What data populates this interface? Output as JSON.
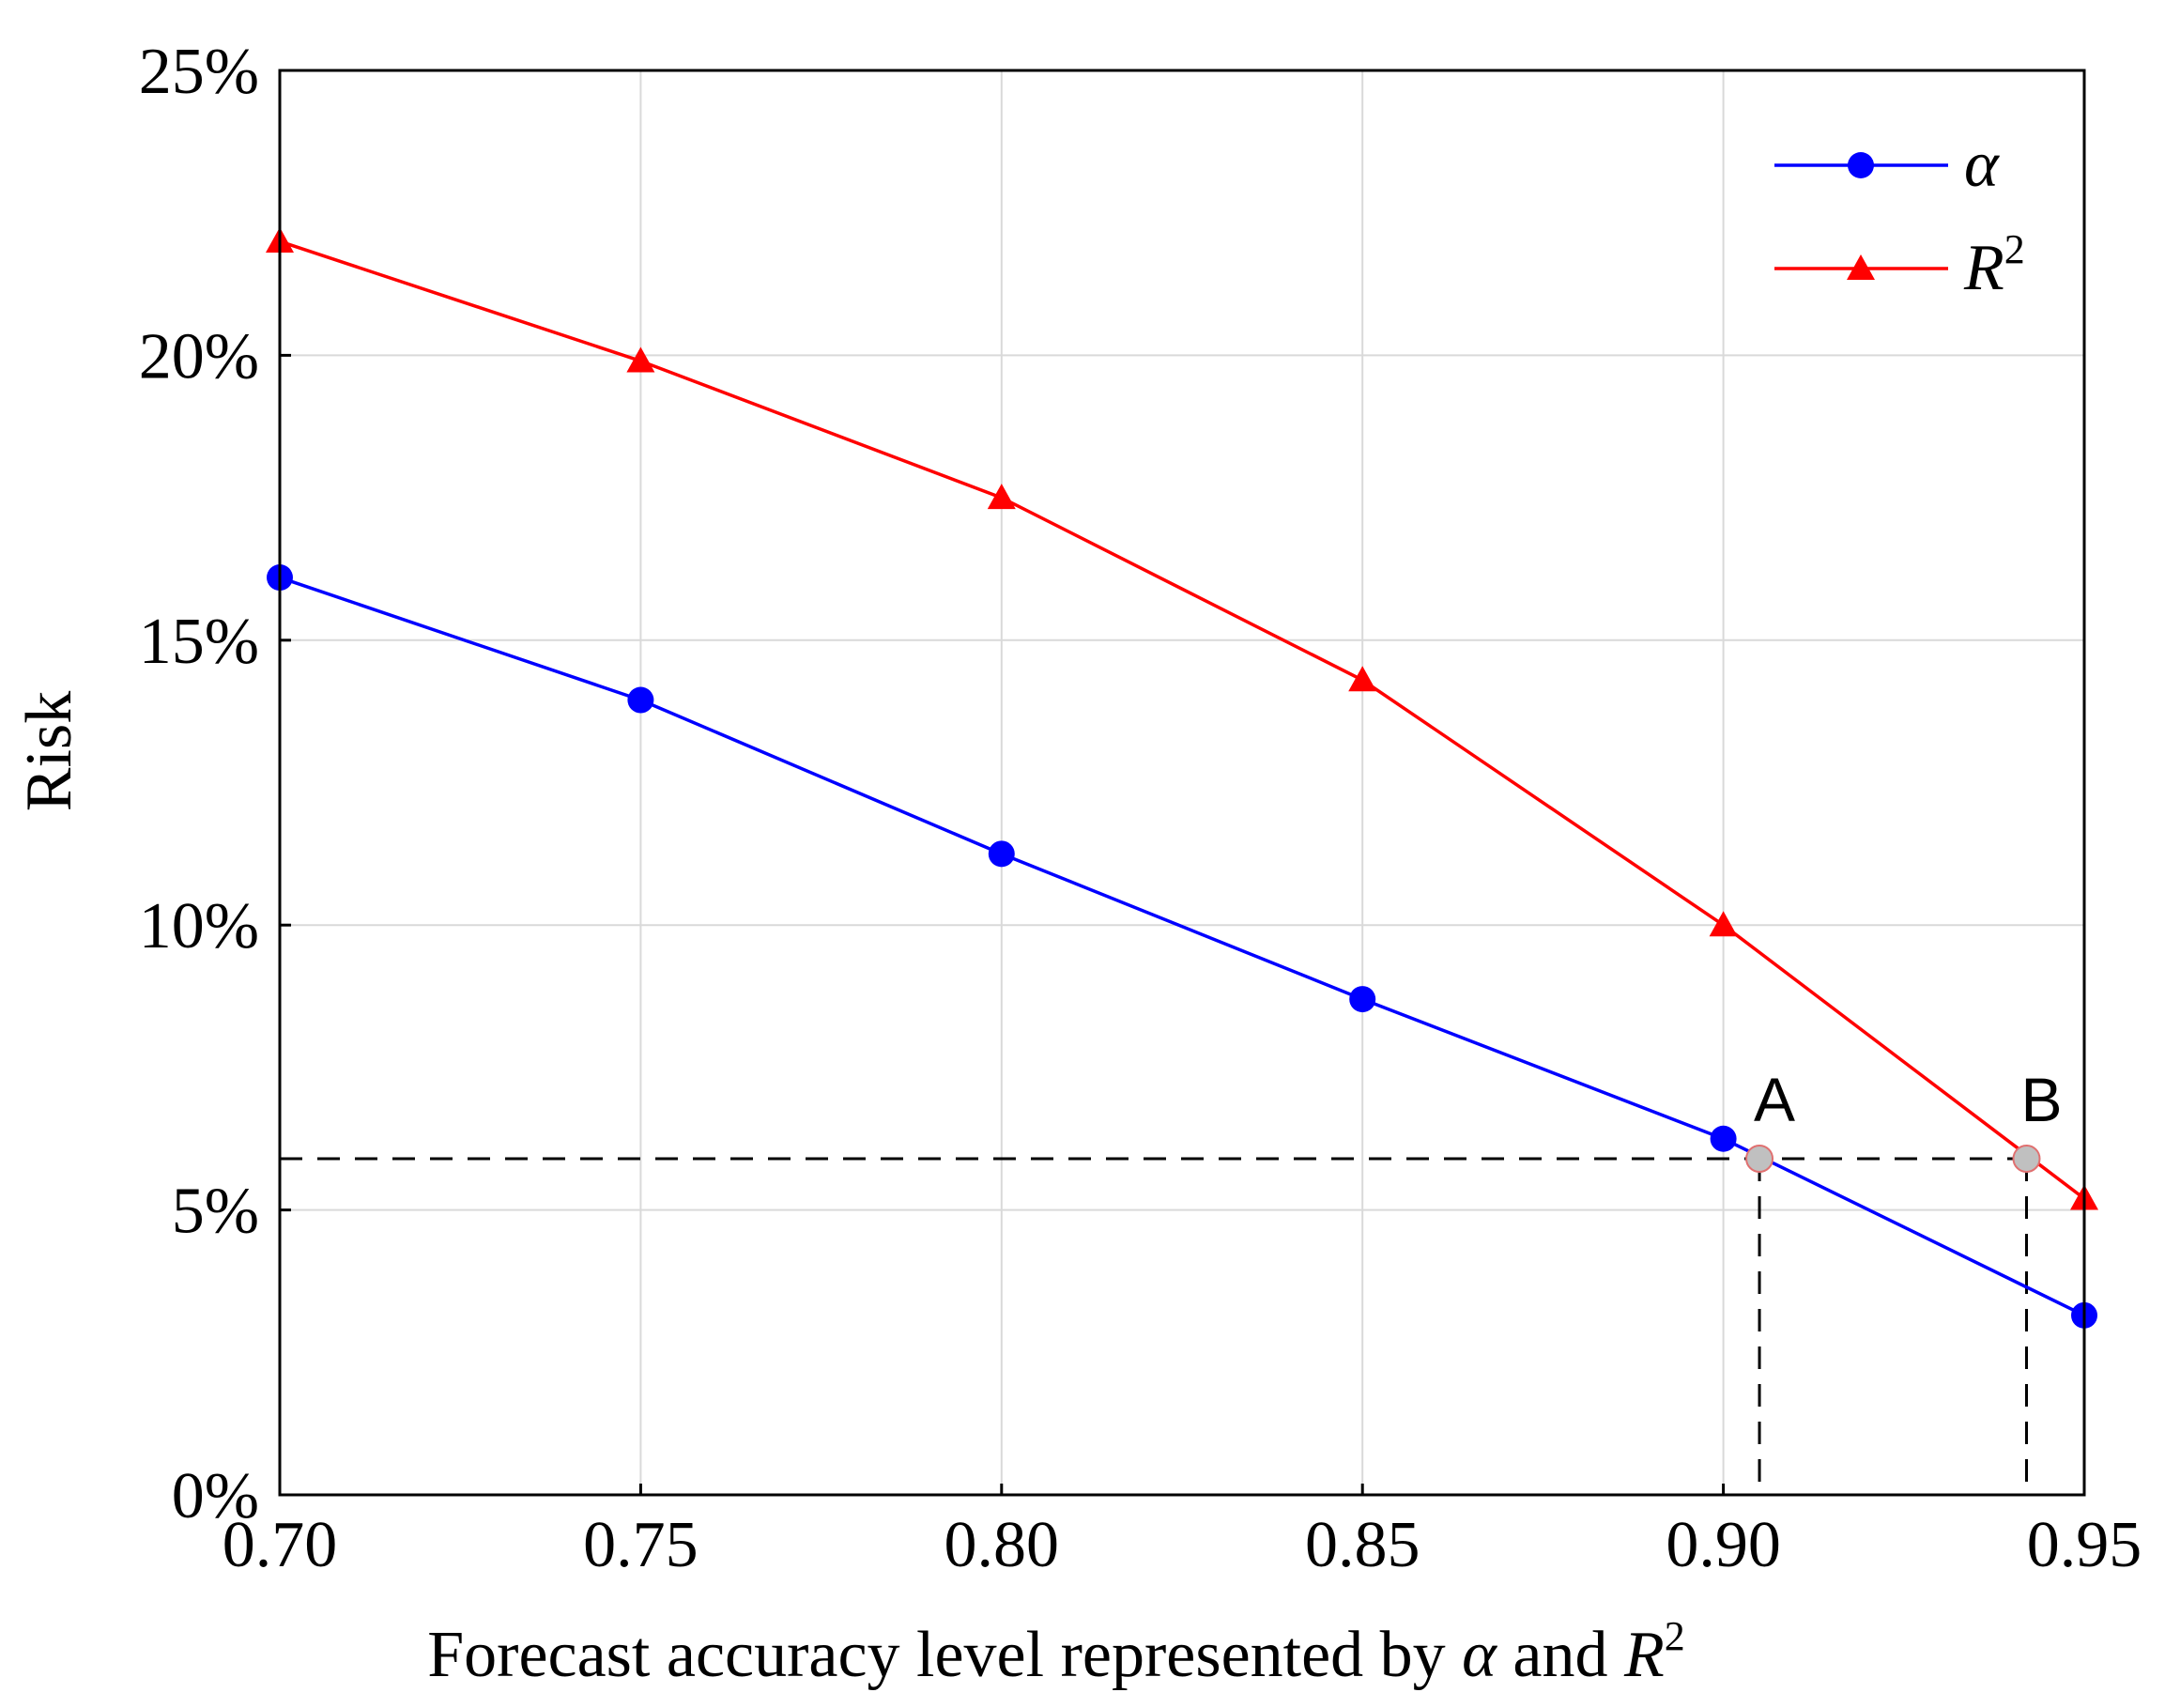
{
  "chart_data": {
    "type": "line",
    "title": "",
    "xlabel": "Forecast accuracy level represented by α and R²",
    "xlabel_parts": {
      "prefix": "Forecast accuracy level represented by ",
      "alpha": "α",
      "middle": " and ",
      "r": "R",
      "exp": "2"
    },
    "ylabel": "Risk",
    "x": [
      0.7,
      0.75,
      0.8,
      0.85,
      0.9,
      0.95
    ],
    "xlim": [
      0.7,
      0.95
    ],
    "ylim": [
      0,
      25
    ],
    "x_tick_values": [
      0.7,
      0.75,
      0.8,
      0.85,
      0.9,
      0.95
    ],
    "x_tick_labels": [
      "0.70",
      "0.75",
      "0.80",
      "0.85",
      "0.90",
      "0.95"
    ],
    "y_tick_values": [
      0,
      5,
      10,
      15,
      20,
      25
    ],
    "y_tick_labels": [
      "0%",
      "5%",
      "10%",
      "15%",
      "20%",
      "25%"
    ],
    "grid": true,
    "legend_position": "top-right",
    "series": [
      {
        "name": "α",
        "legend_base": "α",
        "legend_exp": "",
        "color": "#0000ff",
        "marker": "circle",
        "values": [
          16.1,
          13.95,
          11.25,
          8.7,
          6.25,
          3.15
        ]
      },
      {
        "name": "R²",
        "legend_base": "R",
        "legend_exp": "2",
        "color": "#ff0000",
        "marker": "triangle",
        "values": [
          22.0,
          19.9,
          17.5,
          14.3,
          10.0,
          5.2
        ]
      }
    ],
    "threshold_y": 5.9,
    "annotations": [
      {
        "label": "A",
        "x": 0.905,
        "y": 5.9
      },
      {
        "label": "B",
        "x": 0.942,
        "y": 5.9
      }
    ],
    "annotation_color": "#c0c0c0"
  }
}
